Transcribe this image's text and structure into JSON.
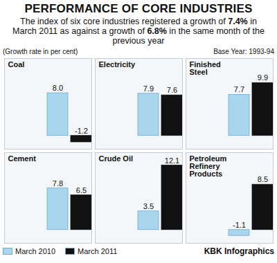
{
  "chart_data": {
    "type": "bar",
    "title": "PERFORMANCE OF CORE INDUSTRIES",
    "subtitle": "The index of six core industries registered a growth of 7.4% in March 2011 as against a growth of 6.8% in the same month of the previous year",
    "ylabel": "(Growth rate in per cent)",
    "note": "Base Year: 1993-94",
    "source": "KBK Infographics",
    "categories": [
      "Coal",
      "Electricity",
      "Finished Steel",
      "Cement",
      "Crude Oil",
      "Petroleum Refinery Products"
    ],
    "series": [
      {
        "name": "March 2010",
        "color": "#a9d6ef",
        "values": [
          8.0,
          7.9,
          7.7,
          7.8,
          3.5,
          -1.1
        ],
        "value_labels": [
          "8.0",
          "7.9",
          "7.7",
          "7.8",
          "3.5",
          "-1.1"
        ]
      },
      {
        "name": "March 2011",
        "color": "#111111",
        "values": [
          -1.2,
          7.6,
          9.9,
          6.5,
          12.1,
          8.5
        ],
        "value_labels": [
          "-1.2",
          "7.6",
          "9.9",
          "6.5",
          "12.1",
          "8.5"
        ]
      }
    ],
    "ylim": [
      -2.5,
      14.5
    ],
    "data_labels": true,
    "tick_labels": false,
    "legend": "bottom"
  }
}
